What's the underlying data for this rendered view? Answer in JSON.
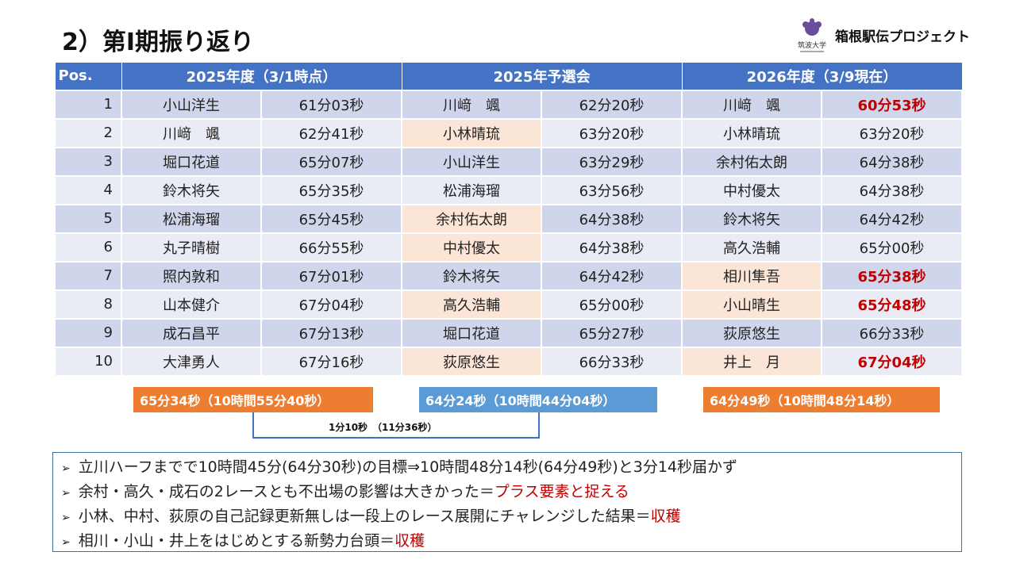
{
  "title": "2）第Ⅰ期振り返り",
  "brand": "箱根駅伝プロジェクト",
  "logo_text": "筑波大学",
  "headers": [
    "Pos.",
    "2025年度（3/1時点）",
    "2025年予選会",
    "2026年度（3/9現在）"
  ],
  "rows": [
    {
      "pos": "1",
      "n1": "小山洋生",
      "t1": "61分03秒",
      "n2": "川﨑　颯",
      "t2": "62分20秒",
      "n3": "川﨑　颯",
      "t3": "60分53秒",
      "hl2": false,
      "hl3": false,
      "red3": true
    },
    {
      "pos": "2",
      "n1": "川﨑　颯",
      "t1": "62分41秒",
      "n2": "小林晴琉",
      "t2": "63分20秒",
      "n3": "小林晴琉",
      "t3": "63分20秒",
      "hl2": true,
      "hl3": false,
      "red3": false
    },
    {
      "pos": "3",
      "n1": "堀口花道",
      "t1": "65分07秒",
      "n2": "小山洋生",
      "t2": "63分29秒",
      "n3": "余村佑太朗",
      "t3": "64分38秒",
      "hl2": false,
      "hl3": false,
      "red3": false
    },
    {
      "pos": "4",
      "n1": "鈴木将矢",
      "t1": "65分35秒",
      "n2": "松浦海瑠",
      "t2": "63分56秒",
      "n3": "中村優太",
      "t3": "64分38秒",
      "hl2": false,
      "hl3": false,
      "red3": false
    },
    {
      "pos": "5",
      "n1": "松浦海瑠",
      "t1": "65分45秒",
      "n2": "余村佑太朗",
      "t2": "64分38秒",
      "n3": "鈴木将矢",
      "t3": "64分42秒",
      "hl2": true,
      "hl3": false,
      "red3": false
    },
    {
      "pos": "6",
      "n1": "丸子晴樹",
      "t1": "66分55秒",
      "n2": "中村優太",
      "t2": "64分38秒",
      "n3": "高久浩輔",
      "t3": "65分00秒",
      "hl2": true,
      "hl3": false,
      "red3": false
    },
    {
      "pos": "7",
      "n1": "照内敦和",
      "t1": "67分01秒",
      "n2": "鈴木将矢",
      "t2": "64分42秒",
      "n3": "相川隼吾",
      "t3": "65分38秒",
      "hl2": false,
      "hl3": true,
      "red3": true
    },
    {
      "pos": "8",
      "n1": "山本健介",
      "t1": "67分04秒",
      "n2": "高久浩輔",
      "t2": "65分00秒",
      "n3": "小山晴生",
      "t3": "65分48秒",
      "hl2": true,
      "hl3": true,
      "red3": true
    },
    {
      "pos": "9",
      "n1": "成石昌平",
      "t1": "67分13秒",
      "n2": "堀口花道",
      "t2": "65分27秒",
      "n3": "荻原悠生",
      "t3": "66分33秒",
      "hl2": false,
      "hl3": false,
      "red3": false
    },
    {
      "pos": "10",
      "n1": "大津勇人",
      "t1": "67分16秒",
      "n2": "荻原悠生",
      "t2": "66分33秒",
      "n3": "井上　月",
      "t3": "67分04秒",
      "hl2": true,
      "hl3": true,
      "red3": true
    }
  ],
  "summary": [
    "65分34秒（10時間55分40秒）",
    "64分24秒（10時間44分04秒）",
    "64分49秒（10時間48分14秒）"
  ],
  "diff": "1分10秒　（11分36秒）",
  "notes": [
    {
      "text": "立川ハーフまでで10時間45分(64分30秒)の目標⇒10時間48分14秒(64分49秒)と3分14秒届かず",
      "red": ""
    },
    {
      "text": "余村・高久・成石の2レースとも不出場の影響は大きかった＝",
      "red": "プラス要素と捉える"
    },
    {
      "text": "小林、中村、荻原の自己記録更新無しは一段上のレース展開にチャレンジした結果＝",
      "red": "収穫"
    },
    {
      "text": "相川・小山・井上をはじめとする新勢力台頭＝",
      "red": "収穫"
    }
  ],
  "colors": {
    "header": "#4472c4",
    "highlight": "#fbe5d6",
    "red": "#c00000",
    "orange": "#ed7d31",
    "blue": "#5b9bd5"
  }
}
